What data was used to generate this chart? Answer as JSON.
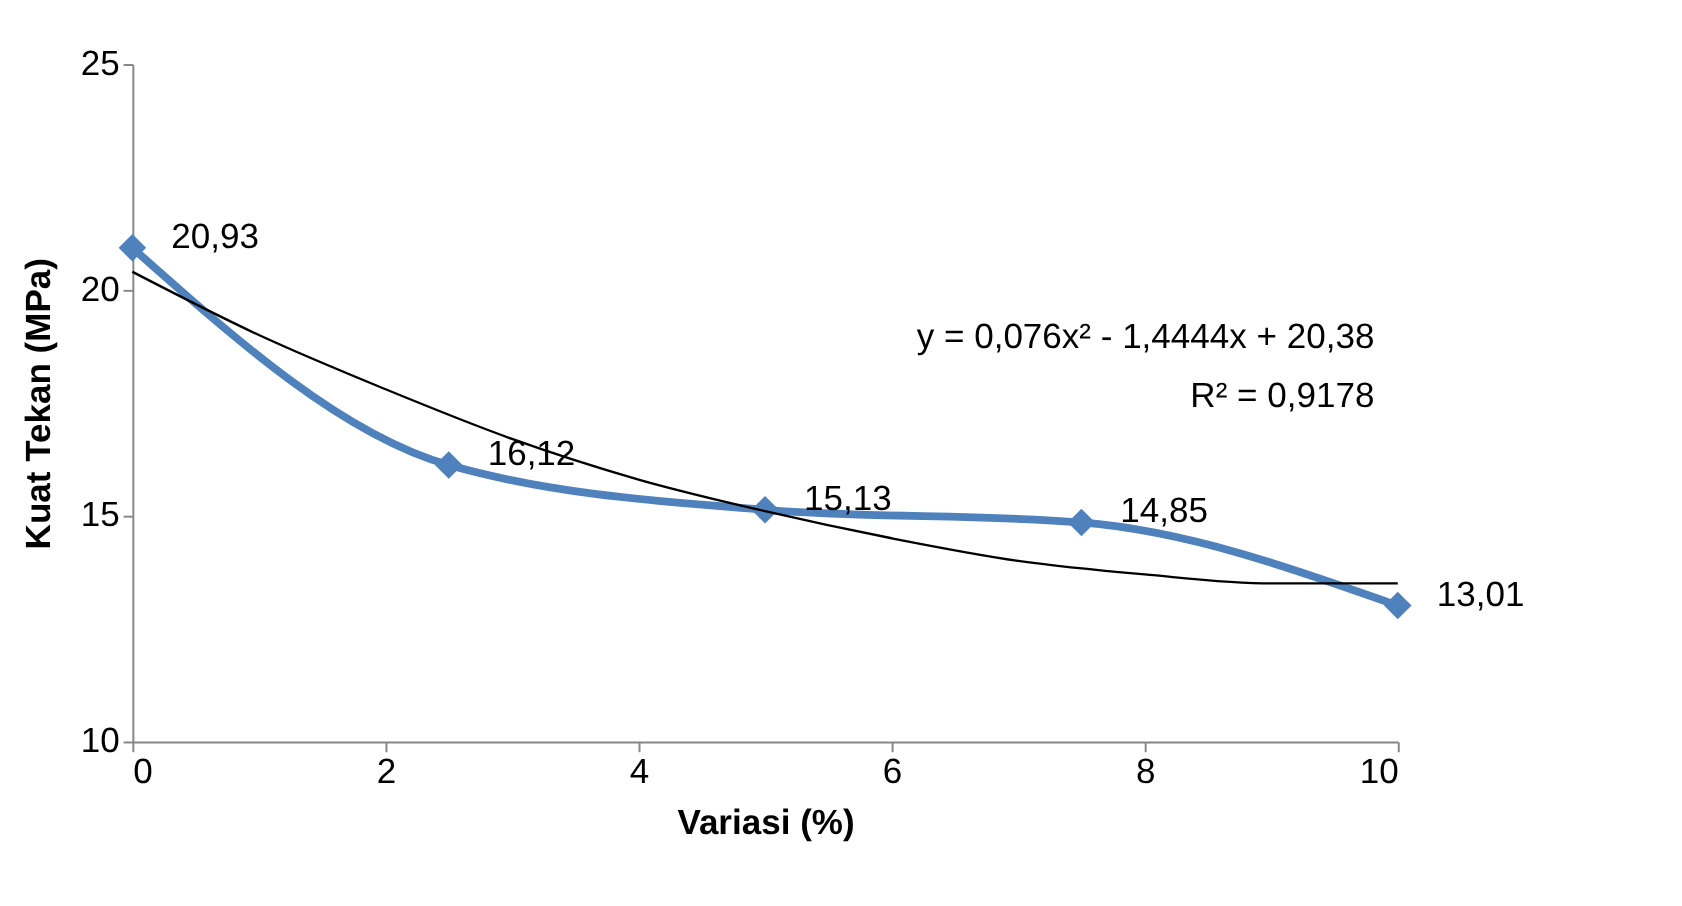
{
  "chart_data": {
    "type": "line",
    "xlabel": "Variasi (%)",
    "ylabel": "Kuat Tekan (MPa)",
    "x": [
      0,
      2.5,
      5,
      7.5,
      10
    ],
    "series": [
      {
        "color": "#4f81bd",
        "values": [
          20.93,
          16.12,
          15.13,
          14.85,
          13.01
        ],
        "value_labels": [
          "20,93",
          "16,12",
          "15,13",
          "14,85",
          "13,01"
        ],
        "marker": "diamond"
      },
      {
        "type": "line",
        "color": "#000000",
        "x": [
          0,
          1,
          2,
          3,
          4,
          5,
          6,
          7,
          8,
          9,
          10
        ],
        "values": [
          20.4,
          19.0,
          17.8,
          16.7,
          15.8,
          15.1,
          14.5,
          14.0,
          13.7,
          13.5,
          13.5
        ],
        "marker": "none"
      }
    ],
    "xlim": [
      0,
      10
    ],
    "xticks": [
      0,
      2,
      4,
      6,
      8,
      10
    ],
    "ylim": [
      10,
      25
    ],
    "yticks": [
      10,
      15,
      20,
      25
    ],
    "annotations": [
      "y = 0,076x² - 1,4444x + 20,38",
      "R² = 0,9178"
    ],
    "grid": false,
    "line_style": "solid"
  }
}
